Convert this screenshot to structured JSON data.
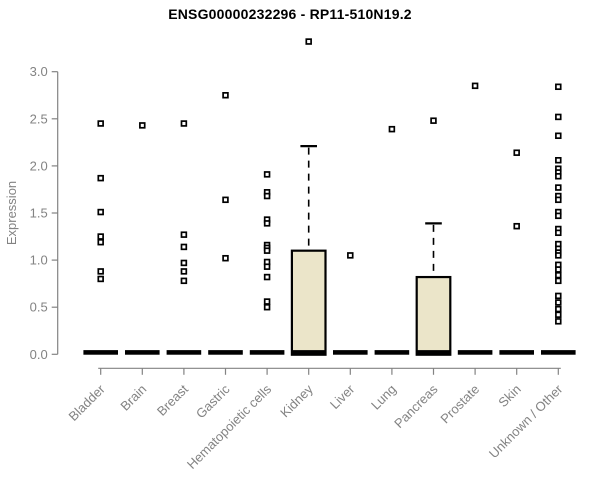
{
  "chart_data": {
    "type": "boxplot",
    "title": "ENSG00000232296 - RP11-510N19.2",
    "ylabel": "Expression",
    "xlabel": "",
    "ylim": [
      0.0,
      3.45
    ],
    "yticks": [
      0.0,
      0.5,
      1.0,
      1.5,
      2.0,
      2.5,
      3.0
    ],
    "grid": false,
    "legend": false,
    "categories": [
      "Bladder",
      "Brain",
      "Breast",
      "Gastric",
      "Hematopoietic cells",
      "Kidney",
      "Liver",
      "Lung",
      "Pancreas",
      "Prostate",
      "Skin",
      "Unknown / Other"
    ],
    "groups": [
      {
        "label": "Bladder",
        "median": 0.02,
        "box": null,
        "points": [
          2.45,
          1.87,
          1.51,
          1.25,
          1.19,
          0.88,
          0.8
        ]
      },
      {
        "label": "Brain",
        "median": 0.02,
        "box": null,
        "points": [
          2.43
        ]
      },
      {
        "label": "Breast",
        "median": 0.02,
        "box": null,
        "points": [
          2.45,
          1.27,
          1.14,
          0.97,
          0.88,
          0.78
        ]
      },
      {
        "label": "Gastric",
        "median": 0.02,
        "box": null,
        "points": [
          2.75,
          1.64,
          1.02
        ]
      },
      {
        "label": "Hematopoietic cells",
        "median": 0.02,
        "box": null,
        "points": [
          1.91,
          1.72,
          1.68,
          1.43,
          1.39,
          1.16,
          1.13,
          1.1,
          0.98,
          0.93,
          0.82,
          0.56,
          0.5
        ]
      },
      {
        "label": "Kidney",
        "median": 0.02,
        "box": {
          "q1": 0.0,
          "q3": 1.1,
          "whisker_high": 2.21
        },
        "points": [
          3.32
        ]
      },
      {
        "label": "Liver",
        "median": 0.02,
        "box": null,
        "points": [
          1.05
        ]
      },
      {
        "label": "Lung",
        "median": 0.02,
        "box": null,
        "points": [
          2.39
        ]
      },
      {
        "label": "Pancreas",
        "median": 0.02,
        "box": {
          "q1": 0.0,
          "q3": 0.82,
          "whisker_high": 1.39
        },
        "points": [
          2.48
        ]
      },
      {
        "label": "Prostate",
        "median": 0.02,
        "box": null,
        "points": [
          2.85
        ]
      },
      {
        "label": "Skin",
        "median": 0.02,
        "box": null,
        "points": [
          2.14,
          1.36
        ]
      },
      {
        "label": "Unknown / Other",
        "median": 0.02,
        "box": null,
        "points": [
          2.84,
          2.52,
          2.32,
          2.06,
          1.97,
          1.93,
          1.89,
          1.77,
          1.68,
          1.64,
          1.51,
          1.47,
          1.33,
          1.29,
          1.17,
          1.12,
          1.08,
          1.05,
          0.95,
          0.9,
          0.84,
          0.78,
          0.62,
          0.55,
          0.48,
          0.42,
          0.35
        ]
      }
    ],
    "style": {
      "box_fill": "#EBE5C9",
      "box_border": "#000000",
      "median_color": "#000000",
      "point_stroke": "#000000",
      "point_fill": "#ffffff",
      "axis_color": "#838383",
      "title_color": "#000000"
    }
  }
}
